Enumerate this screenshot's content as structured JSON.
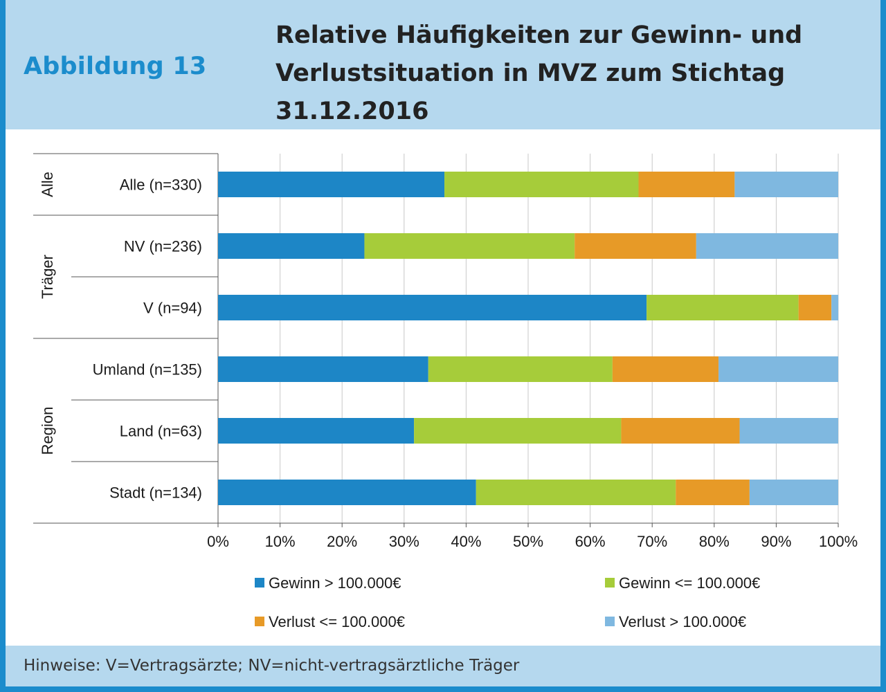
{
  "header": {
    "figure_label": "Abbildung 13",
    "title": "Relative Häufigkeiten zur Gewinn- und Verlustsituation in MVZ zum Stichtag 31.12.2016"
  },
  "footer": {
    "note": "Hinweise: V=Vertragsärzte; NV=nicht-vertragsärztliche Träger"
  },
  "colors": {
    "header_bg": "#b5d8ee",
    "accent": "#1b8ccc",
    "series": [
      "#1d86c6",
      "#a6cc3a",
      "#e79a27",
      "#7fb8e0"
    ]
  },
  "chart_data": {
    "type": "bar",
    "orientation": "horizontal",
    "stacked": true,
    "categories": [
      "Alle (n=330)",
      "NV (n=236)",
      "V (n=94)",
      "Umland (n=135)",
      "Land (n=63)",
      "Stadt (n=134)"
    ],
    "groups": [
      {
        "label": "Alle",
        "categories": [
          "Alle (n=330)"
        ]
      },
      {
        "label": "Träger",
        "categories": [
          "NV (n=236)",
          "V (n=94)"
        ]
      },
      {
        "label": "Region",
        "categories": [
          "Umland (n=135)",
          "Land (n=63)",
          "Stadt (n=134)"
        ]
      }
    ],
    "series": [
      {
        "name": "Gewinn > 100.000€",
        "values": [
          36.5,
          23.6,
          69.1,
          33.9,
          31.6,
          41.6
        ]
      },
      {
        "name": "Gewinn <= 100.000€",
        "values": [
          31.3,
          33.9,
          24.5,
          29.7,
          33.4,
          32.2
        ]
      },
      {
        "name": "Verlust <= 100.000€",
        "values": [
          15.5,
          19.6,
          5.3,
          17.1,
          19.1,
          11.9
        ]
      },
      {
        "name": "Verlust > 100.000€",
        "values": [
          16.7,
          22.9,
          1.1,
          19.3,
          15.9,
          14.3
        ]
      }
    ],
    "xlim": [
      0,
      100
    ],
    "xticks": [
      "0%",
      "10%",
      "20%",
      "30%",
      "40%",
      "50%",
      "60%",
      "70%",
      "80%",
      "90%",
      "100%"
    ],
    "grid": true,
    "legend_position": "bottom"
  }
}
